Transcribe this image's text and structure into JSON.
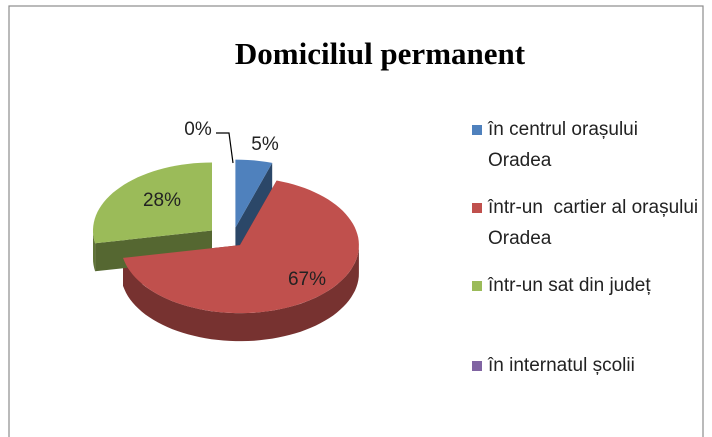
{
  "chart_data": {
    "type": "pie",
    "title": "Domiciliul permanent",
    "categories": [
      "în centrul orașului Oradea",
      "într-un  cartier al orașului Oradea",
      "într-un sat din județ",
      "în internatul școlii"
    ],
    "values": [
      5,
      67,
      28,
      0
    ],
    "value_labels": [
      "5%",
      "67%",
      "28%",
      "0%"
    ],
    "colors": [
      "#4f81bd",
      "#c0504d",
      "#9bbb59",
      "#8064a2"
    ],
    "legend": "right"
  }
}
